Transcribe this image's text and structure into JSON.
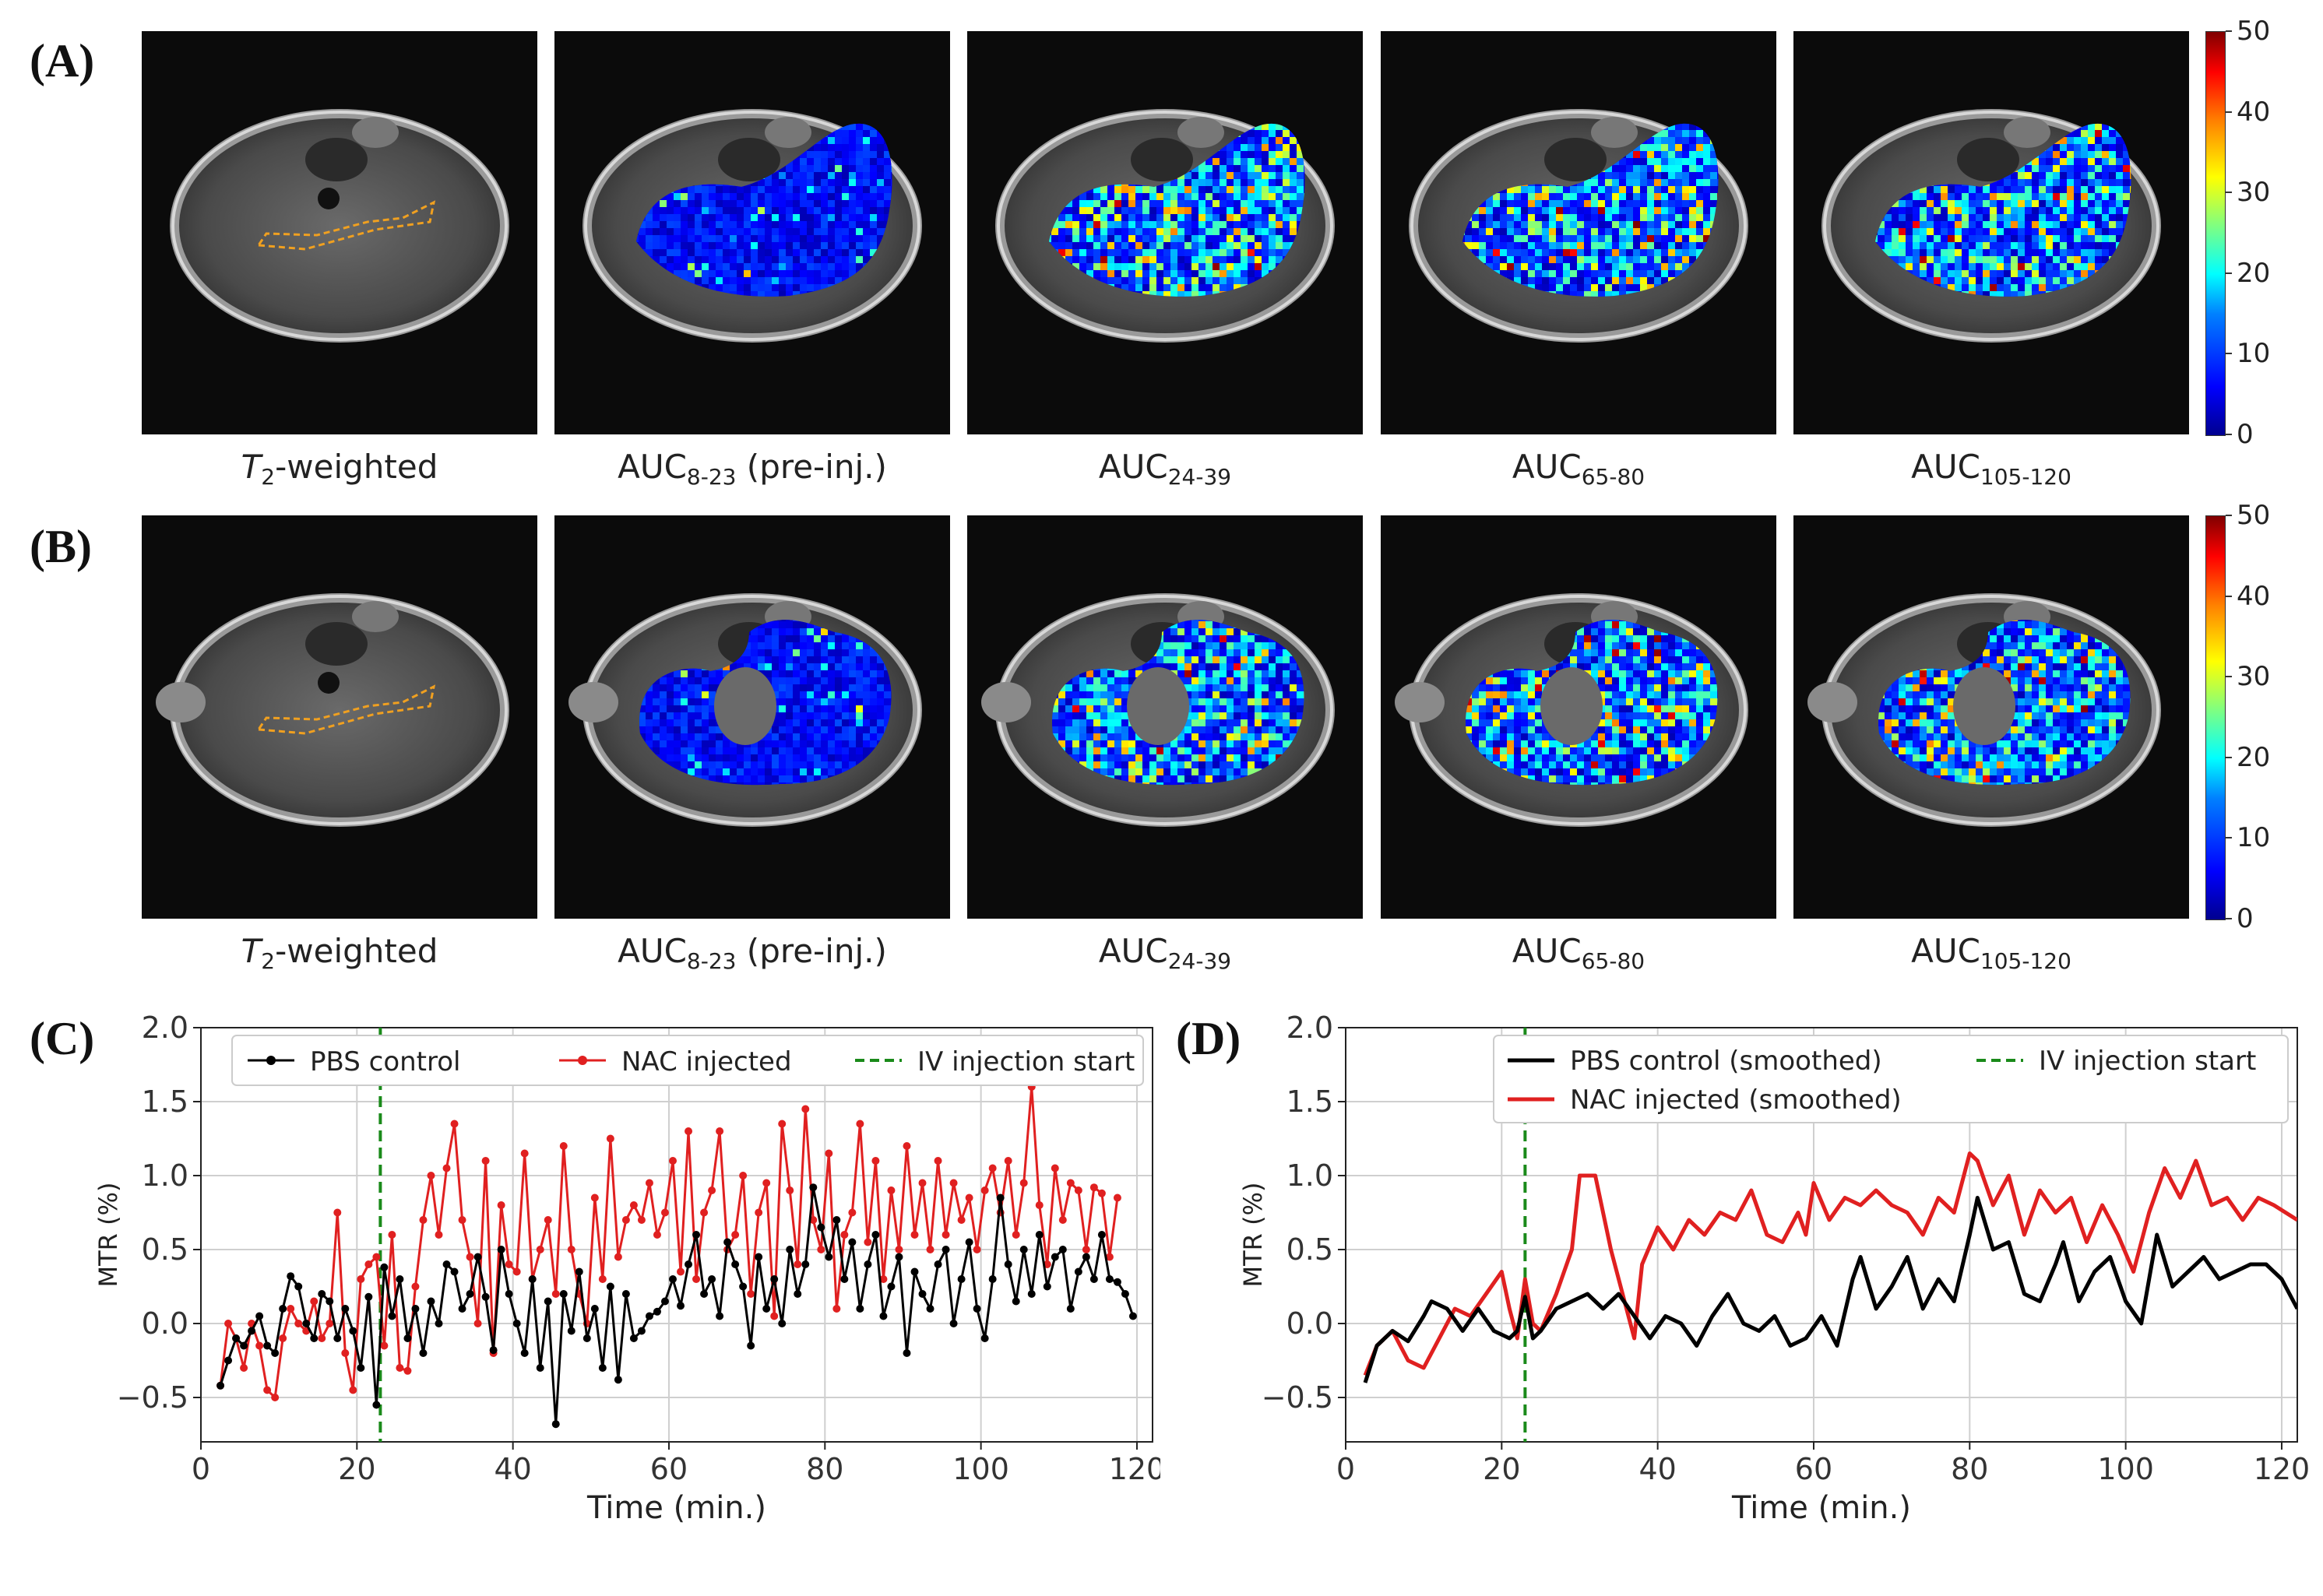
{
  "figure": {
    "panel_labels": {
      "a": "(A)",
      "b": "(B)",
      "c": "(C)",
      "d": "(D)"
    },
    "image_captions": [
      {
        "main": "T",
        "sub": "2",
        "after": "-weighted",
        "italic_main": true
      },
      {
        "main": "AUC",
        "sub": "8-23",
        "after": " (pre-inj.)"
      },
      {
        "main": "AUC",
        "sub": "24-39",
        "after": ""
      },
      {
        "main": "AUC",
        "sub": "65-80",
        "after": ""
      },
      {
        "main": "AUC",
        "sub": "105-120",
        "after": ""
      }
    ],
    "colorbar": {
      "ticks": [
        "50",
        "40",
        "30",
        "20",
        "10",
        "0"
      ],
      "min": 0,
      "max": 50
    }
  },
  "colors": {
    "pbs": "#000000",
    "nac": "#e02020",
    "injection": "#1a8a1a",
    "roi": "#f0a020"
  },
  "chart_data": [
    {
      "id": "C",
      "type": "line",
      "title": "",
      "xlabel": "Time (min.)",
      "ylabel": "MTR (%)",
      "xlim": [
        0,
        122
      ],
      "ylim": [
        -0.8,
        2.0
      ],
      "xticks": [
        0,
        20,
        40,
        60,
        80,
        100,
        120
      ],
      "yticks": [
        -0.5,
        0.0,
        0.5,
        1.0,
        1.5,
        2.0
      ],
      "ytick_labels": [
        "−0.5",
        "0.0",
        "0.5",
        "1.0",
        "1.5",
        "2.0"
      ],
      "grid": true,
      "markers": true,
      "legend": [
        "PBS control",
        "NAC injected",
        "IV injection start"
      ],
      "vline": 23,
      "series": [
        {
          "name": "PBS control",
          "color": "#000000",
          "x_start": 2.5,
          "x_step": 1.0,
          "values": [
            -0.42,
            -0.25,
            -0.1,
            -0.15,
            -0.05,
            0.05,
            -0.15,
            -0.2,
            0.1,
            0.32,
            0.25,
            0.0,
            -0.1,
            0.2,
            0.15,
            -0.1,
            0.1,
            -0.05,
            -0.3,
            0.18,
            -0.55,
            0.38,
            0.05,
            0.3,
            -0.1,
            0.1,
            -0.2,
            0.15,
            0.0,
            0.4,
            0.35,
            0.1,
            0.2,
            0.45,
            0.18,
            -0.18,
            0.5,
            0.2,
            0.0,
            -0.2,
            0.3,
            -0.3,
            0.15,
            -0.68,
            0.2,
            -0.05,
            0.35,
            -0.1,
            0.1,
            -0.3,
            0.25,
            -0.38,
            0.2,
            -0.1,
            -0.05,
            0.05,
            0.08,
            0.15,
            0.3,
            0.12,
            0.4,
            0.6,
            0.2,
            0.3,
            0.05,
            0.55,
            0.4,
            0.25,
            -0.15,
            0.45,
            0.1,
            0.3,
            0.0,
            0.5,
            0.2,
            0.4,
            0.92,
            0.65,
            0.45,
            0.7,
            0.3,
            0.55,
            0.1,
            0.4,
            0.6,
            0.05,
            0.25,
            0.45,
            -0.2,
            0.35,
            0.2,
            0.1,
            0.4,
            0.5,
            0.0,
            0.3,
            0.55,
            0.1,
            -0.1,
            0.3,
            0.85,
            0.4,
            0.15,
            0.5,
            0.2,
            0.6,
            0.25,
            0.45,
            0.5,
            0.1,
            0.35,
            0.45,
            0.3,
            0.6,
            0.3,
            0.28,
            0.2,
            0.05
          ]
        },
        {
          "name": "NAC injected",
          "color": "#e02020",
          "x_start": 2.5,
          "x_step": 1.0,
          "values": [
            -0.42,
            0.0,
            -0.1,
            -0.3,
            0.0,
            -0.15,
            -0.45,
            -0.5,
            -0.1,
            0.1,
            0.0,
            -0.05,
            0.15,
            -0.1,
            0.0,
            0.75,
            -0.2,
            -0.45,
            0.3,
            0.4,
            0.45,
            -0.15,
            0.6,
            -0.3,
            -0.32,
            0.25,
            0.7,
            1.0,
            0.6,
            1.05,
            1.35,
            0.7,
            0.45,
            0.0,
            1.1,
            -0.2,
            0.8,
            0.4,
            0.35,
            1.15,
            0.3,
            0.5,
            0.7,
            0.2,
            1.2,
            0.5,
            0.2,
            0.0,
            0.85,
            0.3,
            1.25,
            0.45,
            0.7,
            0.8,
            0.7,
            0.95,
            0.6,
            0.75,
            1.1,
            0.35,
            1.3,
            0.3,
            0.75,
            0.9,
            1.3,
            0.5,
            0.6,
            1.0,
            0.2,
            0.75,
            0.95,
            0.05,
            1.35,
            0.9,
            0.4,
            1.45,
            0.7,
            0.5,
            1.15,
            0.1,
            0.6,
            0.75,
            1.35,
            0.55,
            1.1,
            0.3,
            0.9,
            0.5,
            1.2,
            0.6,
            0.95,
            0.5,
            1.1,
            0.6,
            0.95,
            0.7,
            0.85,
            0.5,
            0.9,
            1.05,
            0.75,
            1.1,
            0.6,
            0.95,
            1.6,
            0.8,
            0.4,
            1.05,
            0.7,
            0.95,
            0.9,
            0.5,
            0.92,
            0.88,
            0.45,
            0.85
          ]
        },
        {
          "name": "IV injection start",
          "color": "#1a8a1a",
          "dashed": true,
          "x": 23
        }
      ]
    },
    {
      "id": "D",
      "type": "line",
      "title": "",
      "xlabel": "Time (min.)",
      "ylabel": "MTR (%)",
      "xlim": [
        0,
        122
      ],
      "ylim": [
        -0.8,
        2.0
      ],
      "xticks": [
        0,
        20,
        40,
        60,
        80,
        100,
        120
      ],
      "yticks": [
        -0.5,
        0.0,
        0.5,
        1.0,
        1.5,
        2.0
      ],
      "ytick_labels": [
        "−0.5",
        "0.0",
        "0.5",
        "1.0",
        "1.5",
        "2.0"
      ],
      "grid": true,
      "markers": false,
      "legend": [
        "PBS control (smoothed)",
        "NAC injected (smoothed)",
        "IV injection start"
      ],
      "vline": 23,
      "series": [
        {
          "name": "PBS control (smoothed)",
          "color": "#000000",
          "x": [
            2.5,
            4,
            6,
            8,
            10,
            11,
            13,
            15,
            17,
            19,
            21,
            22,
            23,
            24,
            25,
            27,
            29,
            31,
            33,
            35,
            37,
            39,
            41,
            43,
            45,
            47,
            49,
            51,
            53,
            55,
            57,
            59,
            61,
            63,
            65,
            66,
            68,
            70,
            72,
            74,
            76,
            78,
            80,
            81,
            83,
            85,
            87,
            89,
            91,
            92,
            94,
            96,
            98,
            100,
            102,
            103,
            104,
            106,
            108,
            110,
            112,
            114,
            116,
            118,
            120,
            122
          ],
          "values": [
            -0.4,
            -0.15,
            -0.05,
            -0.12,
            0.05,
            0.15,
            0.1,
            -0.05,
            0.1,
            -0.05,
            -0.1,
            -0.05,
            0.18,
            -0.1,
            -0.05,
            0.1,
            0.15,
            0.2,
            0.1,
            0.2,
            0.05,
            -0.1,
            0.05,
            0.0,
            -0.15,
            0.05,
            0.2,
            0.0,
            -0.05,
            0.05,
            -0.15,
            -0.1,
            0.05,
            -0.15,
            0.3,
            0.45,
            0.1,
            0.25,
            0.45,
            0.1,
            0.3,
            0.15,
            0.6,
            0.85,
            0.5,
            0.55,
            0.2,
            0.15,
            0.4,
            0.55,
            0.15,
            0.35,
            0.45,
            0.15,
            0.0,
            0.3,
            0.6,
            0.25,
            0.35,
            0.45,
            0.3,
            0.35,
            0.4,
            0.4,
            0.3,
            0.1
          ]
        },
        {
          "name": "NAC injected (smoothed)",
          "color": "#e02020",
          "x": [
            2.5,
            4,
            6,
            8,
            10,
            12,
            14,
            16,
            18,
            20,
            21,
            22,
            23,
            24,
            25,
            27,
            29,
            30,
            32,
            34,
            36,
            37,
            38,
            40,
            42,
            44,
            46,
            48,
            50,
            52,
            54,
            56,
            58,
            59,
            60,
            62,
            64,
            66,
            68,
            70,
            72,
            74,
            76,
            78,
            80,
            81,
            83,
            85,
            87,
            89,
            91,
            93,
            95,
            97,
            99,
            101,
            103,
            105,
            107,
            109,
            111,
            113,
            115,
            117,
            119,
            122
          ],
          "values": [
            -0.35,
            -0.15,
            -0.05,
            -0.25,
            -0.3,
            -0.1,
            0.1,
            0.05,
            0.2,
            0.35,
            0.1,
            -0.1,
            0.3,
            0.0,
            -0.05,
            0.2,
            0.5,
            1.0,
            1.0,
            0.5,
            0.1,
            -0.1,
            0.4,
            0.65,
            0.5,
            0.7,
            0.6,
            0.75,
            0.7,
            0.9,
            0.6,
            0.55,
            0.75,
            0.6,
            0.95,
            0.7,
            0.85,
            0.8,
            0.9,
            0.8,
            0.75,
            0.6,
            0.85,
            0.75,
            1.15,
            1.1,
            0.8,
            1.0,
            0.6,
            0.9,
            0.75,
            0.85,
            0.55,
            0.8,
            0.6,
            0.35,
            0.75,
            1.05,
            0.85,
            1.1,
            0.8,
            0.85,
            0.7,
            0.85,
            0.8,
            0.7
          ]
        },
        {
          "name": "IV injection start",
          "color": "#1a8a1a",
          "dashed": true,
          "x": 23
        }
      ]
    }
  ]
}
